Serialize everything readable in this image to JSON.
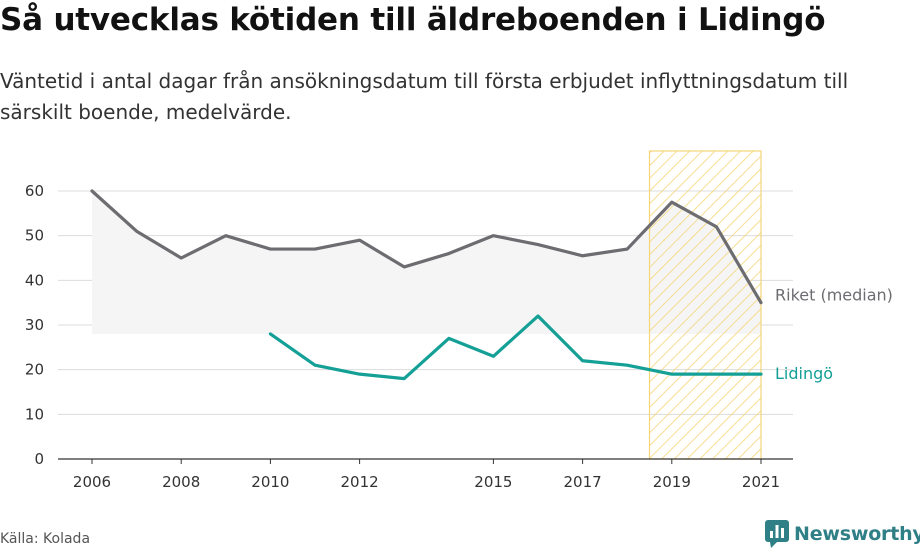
{
  "title": "Så utvecklas kötiden till äldreboenden i Lidingö",
  "subtitle": "Väntetid i antal dagar från ansökningsdatum till första erbjudet inflyttningsdatum till särskilt boende, medelvärde.",
  "source": "Källa: Kolada",
  "brand": {
    "name": "Newsworthy",
    "icon": "newsworthy-logo-icon",
    "color": "#2f7f86"
  },
  "chart_data": {
    "type": "line",
    "x_ticks": [
      2006,
      2008,
      2010,
      2012,
      2015,
      2017,
      2019,
      2021
    ],
    "y_ticks": [
      0,
      10,
      20,
      30,
      40,
      50,
      60
    ],
    "xlim": [
      2006,
      2021
    ],
    "ylim": [
      0,
      60
    ],
    "grid": true,
    "highlight_range": [
      2018.5,
      2021
    ],
    "band": {
      "x": [
        2006,
        2021
      ],
      "lower": 28,
      "upper": "riket"
    },
    "series": [
      {
        "name": "Riket (median)",
        "color": "#6d6c71",
        "x": [
          2006,
          2007,
          2008,
          2009,
          2010,
          2011,
          2012,
          2013,
          2014,
          2015,
          2016,
          2017,
          2018,
          2019,
          2020,
          2021
        ],
        "y": [
          60,
          51,
          45,
          50,
          47,
          47,
          49,
          43,
          46,
          50,
          48,
          45.5,
          47,
          57.5,
          52,
          35
        ]
      },
      {
        "name": "Lidingö",
        "color": "#14a096",
        "x": [
          2010,
          2011,
          2012,
          2013,
          2014,
          2015,
          2016,
          2017,
          2018,
          2019,
          2020,
          2021
        ],
        "y": [
          28,
          21,
          19,
          18,
          27,
          23,
          32,
          22,
          21,
          19,
          19,
          19
        ]
      }
    ]
  }
}
